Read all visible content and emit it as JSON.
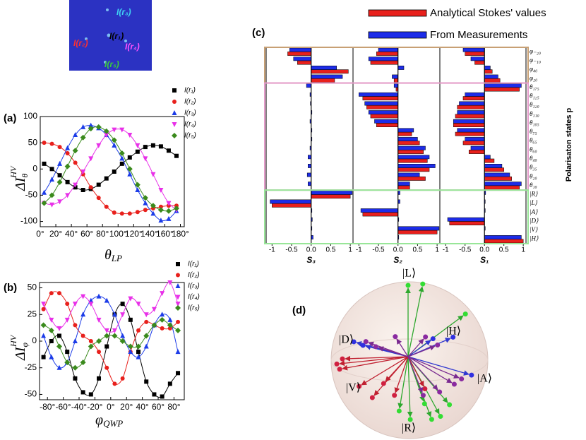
{
  "figure": {
    "panel_labels": [
      "(a)",
      "(b)",
      "(c)",
      "(d)"
    ],
    "inset_labels": [
      "I(r₃)",
      "I(r₁)",
      "I(r₂)",
      "I(r₄)",
      "I(r₅)"
    ],
    "sphere_labels": [
      "|L⟩",
      "|H⟩",
      "|D⟩",
      "|A⟩",
      "|V⟩",
      "|R⟩"
    ]
  },
  "chart_data": [
    {
      "type": "line",
      "xlabel": {
        "base": "θ",
        "sub": "LP"
      },
      "ylabel": {
        "base": "ΔI",
        "sub": "θ",
        "sup": "HV"
      },
      "x": [
        5,
        15,
        25,
        35,
        45,
        55,
        65,
        75,
        85,
        95,
        105,
        115,
        125,
        135,
        145,
        155,
        165,
        175
      ],
      "xlim": [
        0,
        185
      ],
      "xticks": [
        {
          "value": 0,
          "label": "0°"
        },
        {
          "value": 20,
          "label": "20°"
        },
        {
          "value": 40,
          "label": "40°"
        },
        {
          "value": 60,
          "label": "60°"
        },
        {
          "value": 80,
          "label": "80°"
        },
        {
          "value": 100,
          "label": "100°"
        },
        {
          "value": 120,
          "label": "120°"
        },
        {
          "value": 140,
          "label": "140°"
        },
        {
          "value": 160,
          "label": "160°"
        },
        {
          "value": 180,
          "label": "180°"
        }
      ],
      "ylim": [
        -110,
        100
      ],
      "yticks": [
        -100,
        -50,
        0,
        50,
        100
      ],
      "series": [
        {
          "name": "I(r₁)",
          "color": "#000000",
          "marker": "square",
          "values": [
            10,
            0,
            -12,
            -25,
            -35,
            -40,
            -38,
            -30,
            -18,
            -5,
            10,
            22,
            33,
            42,
            45,
            43,
            35,
            25
          ]
        },
        {
          "name": "I(r₂)",
          "color": "#e8201c",
          "marker": "circle",
          "values": [
            50,
            48,
            42,
            30,
            12,
            -10,
            -35,
            -55,
            -72,
            -83,
            -85,
            -85,
            -82,
            -78,
            -75,
            -72,
            -70,
            -70
          ]
        },
        {
          "name": "I(r₃)",
          "color": "#1c3ce8",
          "marker": "triangle-up",
          "values": [
            -45,
            -20,
            10,
            40,
            65,
            80,
            83,
            78,
            65,
            45,
            20,
            -10,
            -40,
            -65,
            -85,
            -98,
            -95,
            -80
          ]
        },
        {
          "name": "I(r₄)",
          "color": "#e830e8",
          "marker": "triangle-down",
          "values": [
            -65,
            -68,
            -62,
            -50,
            -30,
            -5,
            20,
            45,
            65,
            75,
            75,
            65,
            45,
            20,
            -10,
            -40,
            -65,
            -78
          ]
        },
        {
          "name": "I(r₅)",
          "color": "#3a8a1c",
          "marker": "diamond",
          "values": [
            -65,
            -50,
            -25,
            5,
            35,
            60,
            77,
            80,
            72,
            55,
            30,
            0,
            -30,
            -55,
            -70,
            -78,
            -80,
            -75
          ]
        }
      ]
    },
    {
      "type": "line",
      "xlabel": {
        "base": "φ",
        "sub": "QWP"
      },
      "ylabel": {
        "base": "ΔI",
        "sub": "φ",
        "sup": "HV"
      },
      "x": [
        -85,
        -75,
        -65,
        -55,
        -45,
        -35,
        -25,
        -15,
        -5,
        5,
        15,
        25,
        35,
        45,
        55,
        65,
        75,
        85
      ],
      "xlim": [
        -90,
        93
      ],
      "xticks": [
        {
          "value": -80,
          "label": "-80°"
        },
        {
          "value": -60,
          "label": "-60°"
        },
        {
          "value": -40,
          "label": "-40°"
        },
        {
          "value": -20,
          "label": "-20°"
        },
        {
          "value": 0,
          "label": "0°"
        },
        {
          "value": 20,
          "label": "20°"
        },
        {
          "value": 40,
          "label": "40°"
        },
        {
          "value": 60,
          "label": "60°"
        },
        {
          "value": 80,
          "label": "80°"
        }
      ],
      "ylim": [
        -55,
        55
      ],
      "yticks": [
        -50,
        -25,
        0,
        25,
        50
      ],
      "series": [
        {
          "name": "I(r₁)",
          "color": "#000000",
          "marker": "square",
          "values": [
            -15,
            0,
            5,
            -10,
            -35,
            -48,
            -50,
            -35,
            -5,
            25,
            35,
            20,
            -10,
            -38,
            -50,
            -52,
            -40,
            -30
          ]
        },
        {
          "name": "I(r₂)",
          "color": "#e8201c",
          "marker": "circle",
          "values": [
            30,
            45,
            45,
            35,
            15,
            5,
            0,
            -10,
            -25,
            -40,
            -35,
            -10,
            10,
            18,
            15,
            12,
            12,
            18
          ]
        },
        {
          "name": "I(r₃)",
          "color": "#1c3ce8",
          "marker": "triangle-up",
          "values": [
            5,
            -15,
            -25,
            -20,
            0,
            25,
            38,
            42,
            38,
            25,
            5,
            -10,
            -15,
            -5,
            15,
            25,
            20,
            -10
          ]
        },
        {
          "name": "I(r₄)",
          "color": "#e830e8",
          "marker": "triangle-down",
          "values": [
            35,
            20,
            12,
            20,
            35,
            42,
            35,
            20,
            10,
            10,
            25,
            40,
            35,
            25,
            30,
            45,
            55,
            35
          ]
        },
        {
          "name": "I(r₅)",
          "color": "#3a8a1c",
          "marker": "diamond",
          "values": [
            15,
            10,
            -5,
            -20,
            -25,
            -20,
            -5,
            0,
            5,
            5,
            0,
            -5,
            -5,
            5,
            15,
            20,
            15,
            10
          ]
        }
      ]
    },
    {
      "type": "hbar",
      "ylabel": "Polarisaton states p",
      "categories": [
        "φ₋₂₀",
        "φ₋₁₀",
        "φ₄₀",
        "φ₂₀",
        "θ₁₇₅",
        "θ₁₂₅",
        "θ₁₂₀",
        "θ₁₁₀",
        "θ₁₀₅",
        "θ₇₅",
        "θ₆₅",
        "θ₆₀",
        "θ₄₀",
        "θ₃₅",
        "θ₂₀",
        "θ₁₀",
        "|R⟩",
        "|L⟩",
        "|A⟩",
        "|D⟩",
        "|V⟩",
        "|H⟩"
      ],
      "xlim": [
        -1.15,
        1.07
      ],
      "xticks": [
        -1,
        -0.5,
        {
          "value": 0,
          "label": "0.0"
        },
        0.5,
        1
      ],
      "series": [
        {
          "name": "Analytical Stokes' values",
          "color": "#e8201c"
        },
        {
          "name": "From Measurements",
          "color": "#1c2ce8"
        }
      ],
      "panels": [
        {
          "xlabel": "S₃",
          "values": [
            [
              -0.6,
              -0.35,
              0.95,
              0.6,
              0,
              0,
              0,
              0,
              0,
              0,
              0,
              0,
              0,
              0,
              0,
              0,
              1,
              -1,
              0,
              0,
              0,
              0
            ],
            [
              -0.55,
              -0.45,
              0.65,
              0.8,
              -0.12,
              -0.03,
              -0.02,
              0.02,
              -0.03,
              0.02,
              0.02,
              -0.03,
              -0.08,
              -0.08,
              -0.1,
              -0.08,
              1.05,
              -1.05,
              0.02,
              0.03,
              0.02,
              0.05
            ]
          ]
        },
        {
          "xlabel": "S₂",
          "values": [
            [
              -0.55,
              -0.7,
              0,
              -0.1,
              -0.05,
              -0.9,
              -0.8,
              -0.7,
              -0.55,
              0.35,
              0.55,
              0.65,
              0.75,
              0.8,
              0.7,
              0.3,
              0,
              0,
              -0.9,
              0,
              1,
              0
            ],
            [
              -0.5,
              -0.75,
              0.15,
              -0.15,
              -0.1,
              -1,
              -0.85,
              -0.75,
              -0.6,
              0.4,
              0.5,
              0.7,
              0.8,
              0.95,
              0.55,
              0.3,
              0.05,
              0.05,
              -0.95,
              0.02,
              1.05,
              0.02
            ]
          ]
        },
        {
          "xlabel": "S₁",
          "values": [
            [
              -0.5,
              -0.25,
              0.2,
              0.4,
              0.9,
              -0.55,
              -0.7,
              -0.75,
              -0.8,
              -0.75,
              -0.55,
              -0.4,
              0.25,
              0.5,
              0.7,
              0.9,
              0,
              0,
              0,
              -0.9,
              0,
              1
            ],
            [
              -0.55,
              -0.35,
              0.15,
              0.35,
              0.95,
              -0.5,
              -0.65,
              -0.7,
              -0.8,
              -0.7,
              -0.5,
              -0.35,
              0.15,
              0.45,
              0.65,
              0.95,
              0.03,
              0.02,
              0.02,
              -0.95,
              0.02,
              0.95
            ]
          ]
        }
      ]
    }
  ]
}
